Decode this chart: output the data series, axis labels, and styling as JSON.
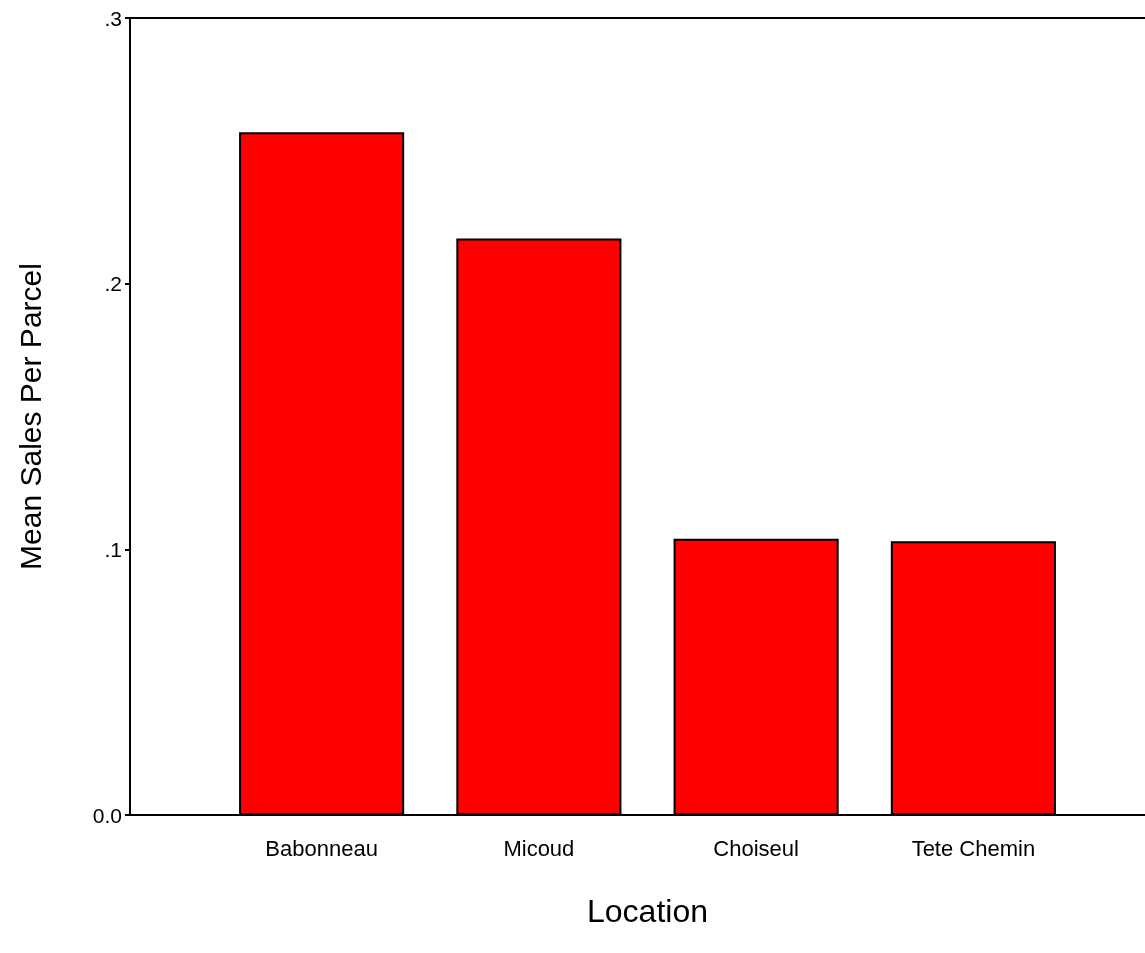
{
  "chart_data": {
    "type": "bar",
    "xlabel": "Location",
    "ylabel": "Mean Sales Per Parcel",
    "categories": [
      "Babonneau",
      "Micoud",
      "Choiseul",
      "Tete Chemin"
    ],
    "values": [
      0.257,
      0.217,
      0.104,
      0.103
    ],
    "color": "#ff0000",
    "ylim": [
      0,
      0.3
    ],
    "yticks": [
      {
        "value": 0,
        "label": "0.0"
      },
      {
        "value": 0.1,
        "label": ".1"
      },
      {
        "value": 0.2,
        "label": ".2"
      },
      {
        "value": 0.3,
        "label": ".3"
      }
    ],
    "grid": false
  }
}
